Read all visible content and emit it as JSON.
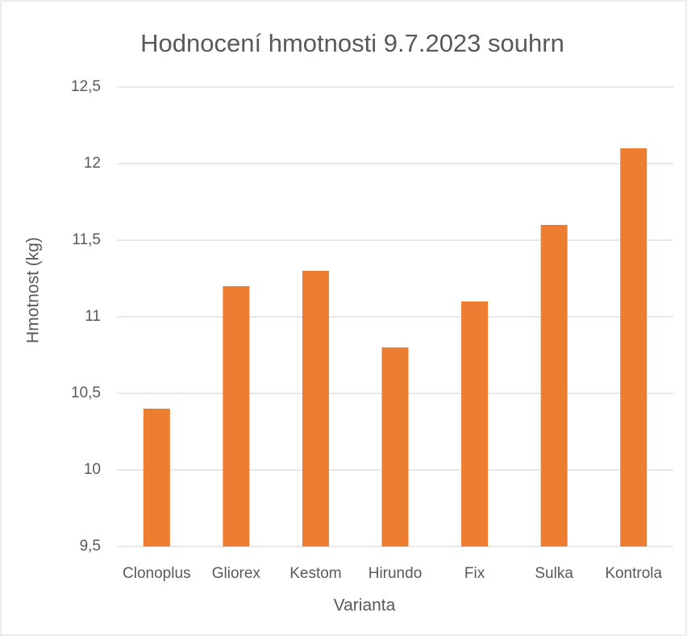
{
  "chart_data": {
    "type": "bar",
    "title": "Hodnocení hmotnosti 9.7.2023 souhrn",
    "x_label": "Varianta",
    "y_label": "Hmotnost (kg)",
    "categories": [
      "Clonoplus",
      "Gliorex",
      "Kestom",
      "Hirundo",
      "Fix",
      "Sulka",
      "Kontrola"
    ],
    "values": [
      10.4,
      11.2,
      11.3,
      10.8,
      11.1,
      11.6,
      12.1
    ],
    "color": "#ed7d31",
    "ylim": [
      9.5,
      12.5
    ],
    "yticks": [
      {
        "value": 9.5,
        "label": "9,5"
      },
      10,
      {
        "value": 10.5,
        "label": "10,5"
      },
      11,
      {
        "value": 11.5,
        "label": "11,5"
      },
      12,
      {
        "value": 12.5,
        "label": "12,5"
      }
    ],
    "grid": true
  }
}
